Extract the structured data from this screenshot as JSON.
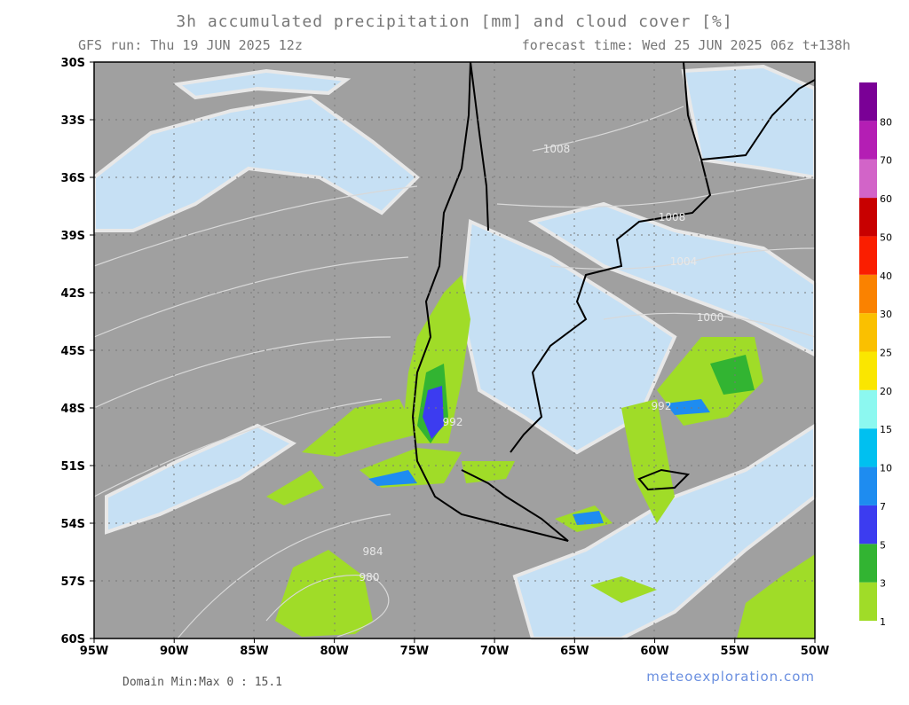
{
  "header": {
    "title": "3h accumulated precipitation [mm] and cloud cover [%]",
    "run": "GFS run: Thu 19 JUN 2025 12z",
    "forecast": "forecast time: Wed 25 JUN 2025 06z  t+138h"
  },
  "axes": {
    "lat_labels": [
      "30S",
      "33S",
      "36S",
      "39S",
      "42S",
      "45S",
      "48S",
      "51S",
      "54S",
      "57S",
      "60S"
    ],
    "lon_labels": [
      "95W",
      "90W",
      "85W",
      "80W",
      "75W",
      "70W",
      "65W",
      "60W",
      "55W",
      "50W"
    ]
  },
  "legend": {
    "levels": [
      {
        "label": "1",
        "color": "#a0dc28"
      },
      {
        "label": "3",
        "color": "#32b432"
      },
      {
        "label": "5",
        "color": "#3c3cf0"
      },
      {
        "label": "7",
        "color": "#1e8cf0"
      },
      {
        "label": "10",
        "color": "#00c0f0"
      },
      {
        "label": "15",
        "color": "#8cf8f0"
      },
      {
        "label": "20",
        "color": "#fae600"
      },
      {
        "label": "25",
        "color": "#fac000"
      },
      {
        "label": "30",
        "color": "#fa8200"
      },
      {
        "label": "40",
        "color": "#fa1e00"
      },
      {
        "label": "50",
        "color": "#c80000"
      },
      {
        "label": "60",
        "color": "#d264c8"
      },
      {
        "label": "70",
        "color": "#b41eb4"
      },
      {
        "label": "80",
        "color": "#7a0096"
      }
    ]
  },
  "contour_labels": [
    "1008",
    "1008",
    "1004",
    "1000",
    "984",
    "980",
    "992",
    "992"
  ],
  "footer": {
    "minmax": "Domain Min:Max 0 : 15.1",
    "credit": "meteoexploration.com"
  }
}
